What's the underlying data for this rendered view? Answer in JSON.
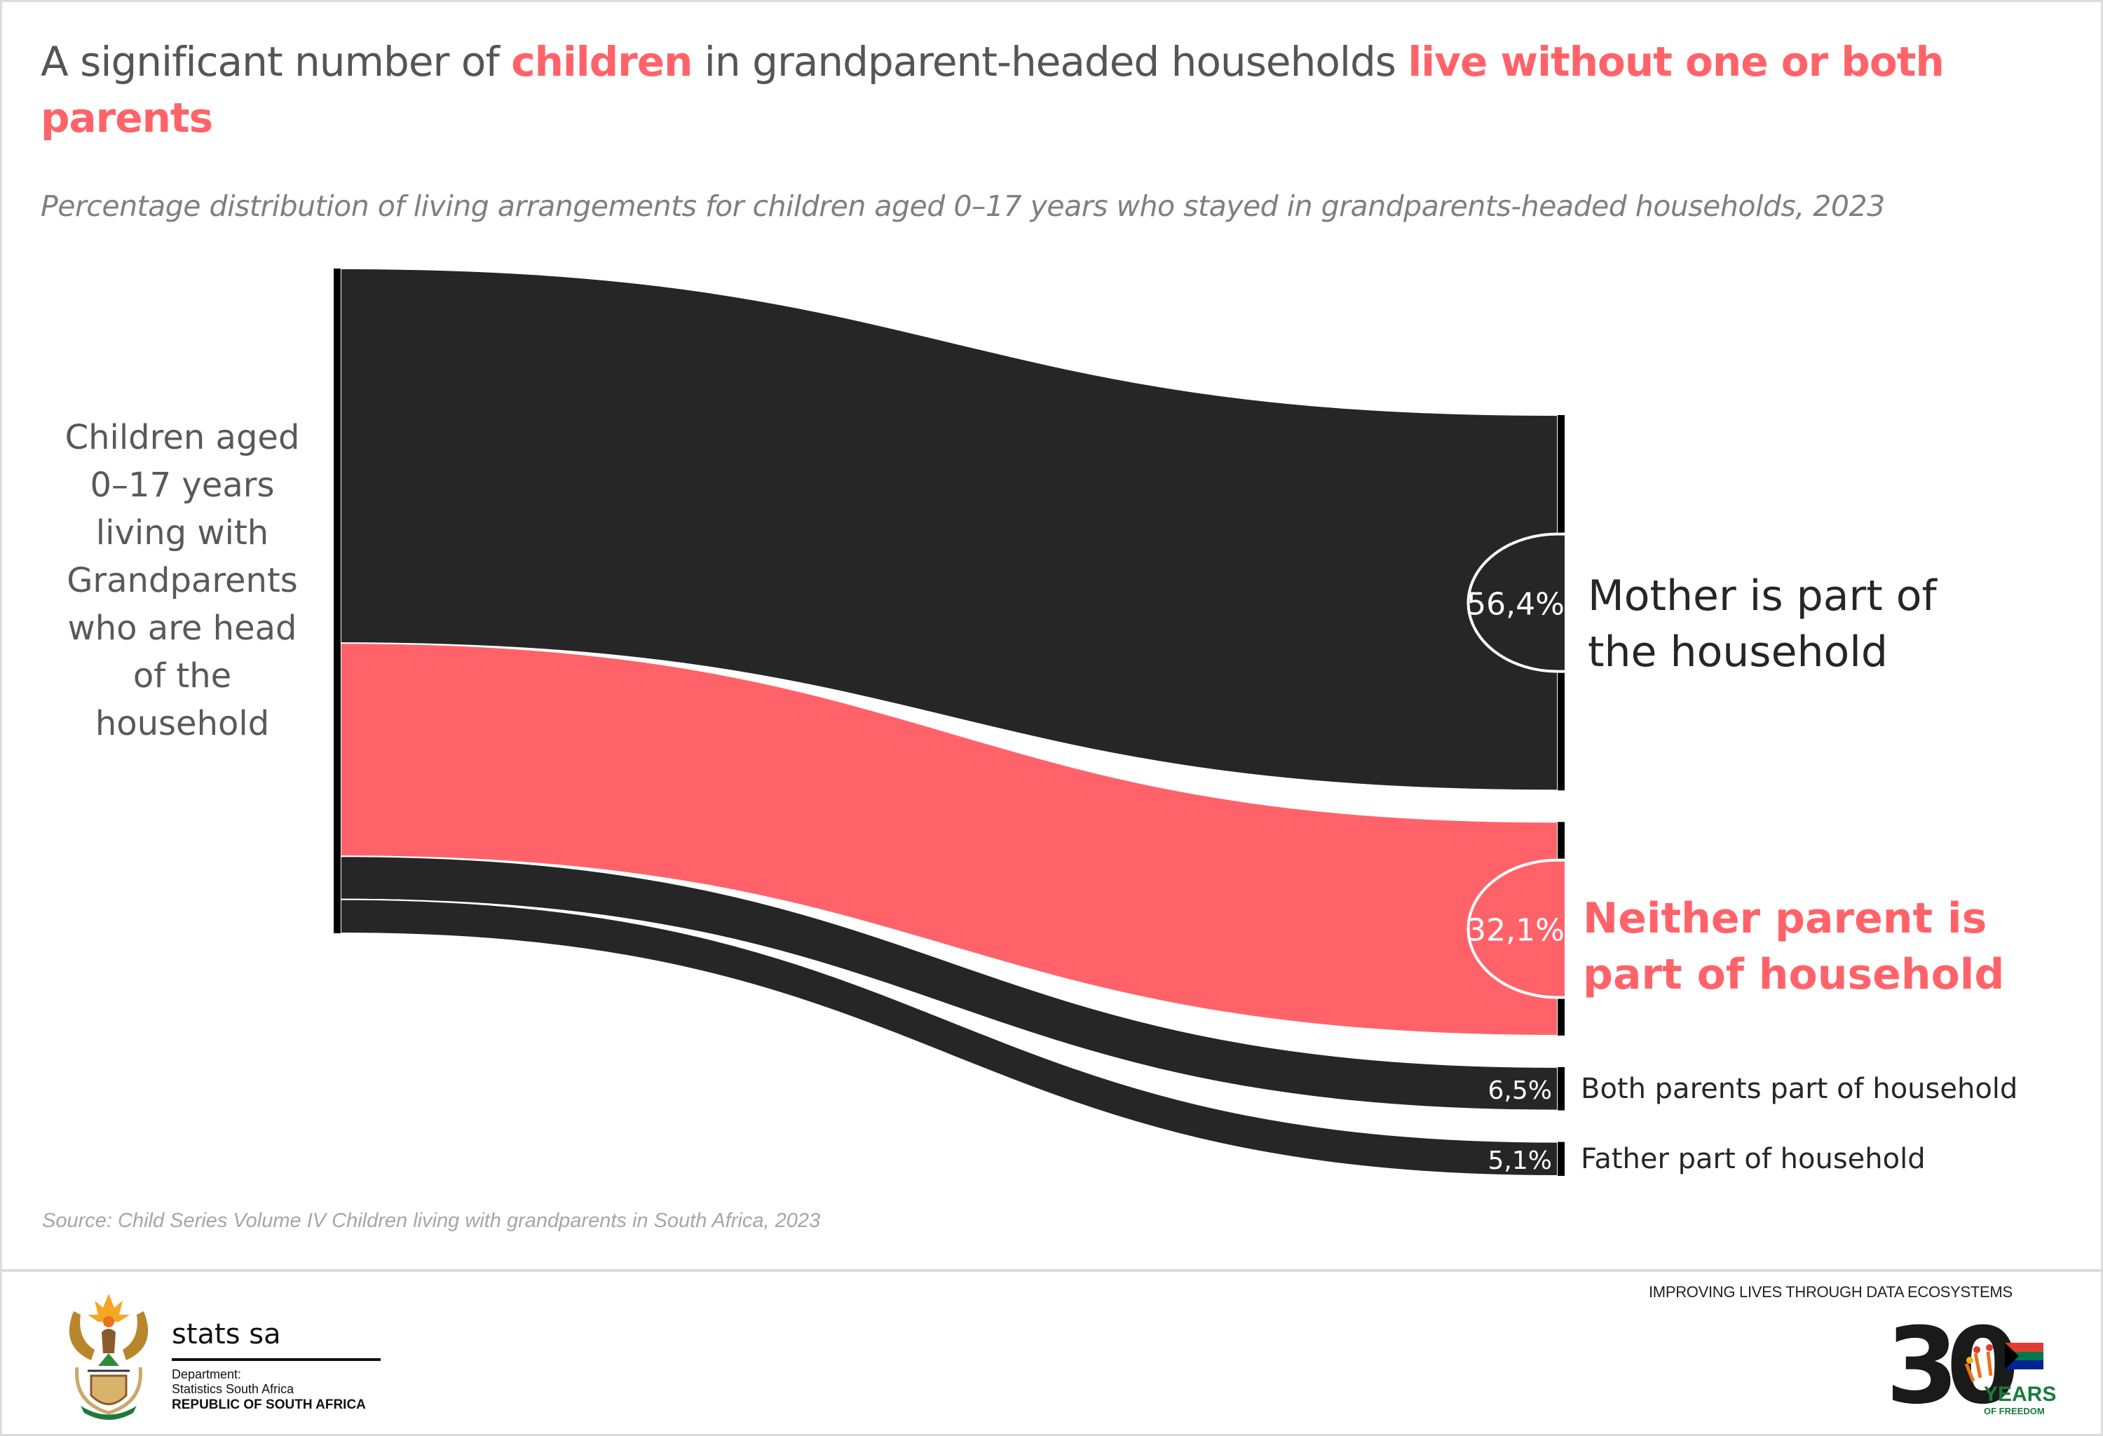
{
  "header": {
    "title_parts": [
      {
        "text": "A significant number of ",
        "highlight": false
      },
      {
        "text": "children",
        "highlight": true
      },
      {
        "text": " in grandparent-headed households ",
        "highlight": false
      },
      {
        "text": "live without one or both parents",
        "highlight": true
      }
    ],
    "subtitle": "Percentage distribution of living arrangements for children aged 0–17 years who stayed in grandparents-headed households, 2023"
  },
  "colors": {
    "accent": "#ff6369",
    "dark_flow": "#262626",
    "node": "#000000",
    "text_grey": "#595959"
  },
  "chart_data": {
    "type": "sankey",
    "title": "Percentage distribution of living arrangements for children aged 0–17 years who stayed in grandparents-headed households, 2023",
    "source_node": "Children aged 0–17 years living with Grandparents who are head of the household",
    "unit": "%",
    "flows": [
      {
        "target": "Mother is part of the household",
        "value": 56.4,
        "label": "56,4%",
        "highlight": false,
        "circled": true
      },
      {
        "target": "Neither parent is part of household",
        "value": 32.1,
        "label": "32,1%",
        "highlight": true,
        "circled": true
      },
      {
        "target": "Both parents part of household",
        "value": 6.5,
        "label": "6,5%",
        "highlight": false,
        "circled": false
      },
      {
        "target": "Father part of household",
        "value": 5.1,
        "label": "5,1%",
        "highlight": false,
        "circled": false
      }
    ]
  },
  "labels": {
    "source": "Children aged 0–17 years living with Grandparents who are head of the household",
    "mother": "Mother is part of the household",
    "neither": "Neither parent is part of household",
    "both": "Both parents part of household",
    "father": "Father part of household"
  },
  "source_note": "Source: Child Series Volume IV Children living with grandparents in South Africa, 2023",
  "footer": {
    "org_name": "stats sa",
    "dept_line1": "Department:",
    "dept_line2": "Statistics South Africa",
    "dept_line3": "REPUBLIC OF SOUTH AFRICA",
    "tagline": "IMPROVING LIVES THROUGH DATA ECOSYSTEMS",
    "anniversary_number": "30",
    "anniversary_years": "YEARS",
    "anniversary_sub": "OF FREEDOM"
  }
}
